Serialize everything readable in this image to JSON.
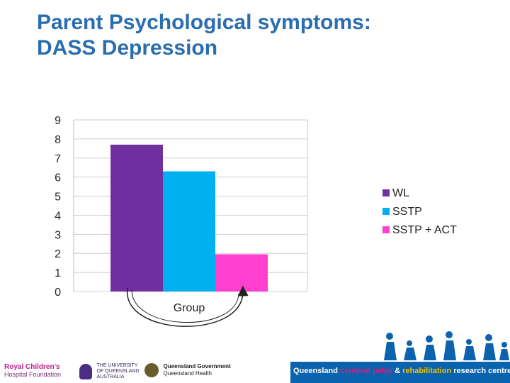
{
  "title": {
    "line1": "Parent Psychological symptoms:",
    "line2": "DASS Depression"
  },
  "chart_data": {
    "type": "bar",
    "categories": [
      "Group"
    ],
    "series": [
      {
        "name": "WL",
        "values": [
          7.7
        ],
        "color": "#7030a0"
      },
      {
        "name": "SSTP",
        "values": [
          6.3
        ],
        "color": "#00b0f0"
      },
      {
        "name": "SSTP + ACT",
        "values": [
          1.95
        ],
        "color": "#ff3fcf"
      }
    ],
    "ylim": [
      0,
      9
    ],
    "yticks": [
      "0",
      "1",
      "2",
      "3",
      "4",
      "5",
      "6",
      "7",
      "8",
      "9"
    ],
    "grid": true,
    "legend": "right",
    "annotation": "curved arrow from WL bar to SSTP + ACT bar"
  },
  "footer": {
    "logo_rch_line1": "Royal Children's",
    "logo_rch_line2": "Hospital Foundation",
    "logo_uq_line1": "THE UNIVERSITY",
    "logo_uq_line2": "OF QUEENSLAND",
    "logo_uq_line3": "AUSTRALIA",
    "logo_qg_line1": "Queensland Government",
    "logo_qg_line2": "Queensland Health",
    "text_queensland": "Queensland",
    "text_cp": "cerebral palsy",
    "text_amp": "&",
    "text_rehab": "rehabilitation",
    "text_rc": "research centre"
  },
  "colors": {
    "title": "#2a6db0",
    "footer_bar": "#0b62ad"
  }
}
